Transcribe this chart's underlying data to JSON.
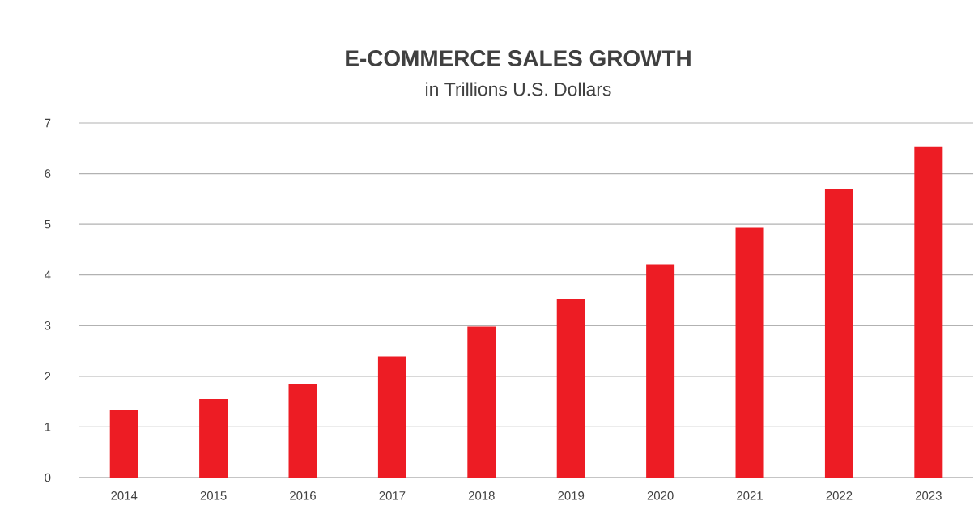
{
  "chart_data": {
    "type": "bar",
    "title": "E-COMMERCE SALES GROWTH",
    "subtitle": "in Trillions U.S. Dollars",
    "categories": [
      "2014",
      "2015",
      "2016",
      "2017",
      "2018",
      "2019",
      "2020",
      "2021",
      "2022",
      "2023"
    ],
    "values": [
      1.34,
      1.55,
      1.84,
      2.39,
      2.98,
      3.53,
      4.21,
      4.93,
      5.69,
      6.54
    ],
    "color": "#ed1c24",
    "ylim": [
      0,
      7
    ],
    "yticks": [
      0,
      1,
      2,
      3,
      4,
      5,
      6,
      7
    ],
    "grid": "y"
  }
}
